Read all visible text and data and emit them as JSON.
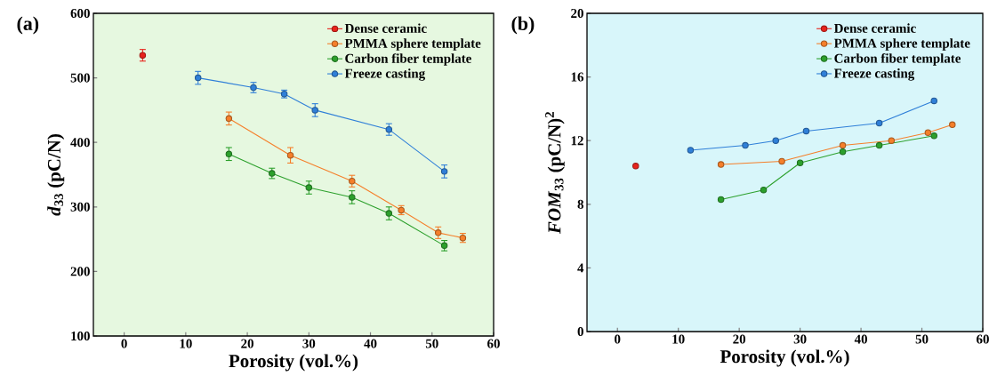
{
  "chart_data": [
    {
      "type": "line",
      "annotations": [
        "(a)"
      ],
      "xlabel": "Porosity (vol.%)",
      "ylabel": "*d*$_{33}$ (pC/N)",
      "xlim": [
        -5,
        60
      ],
      "ylim": [
        100,
        600
      ],
      "xticks": [
        0,
        10,
        20,
        30,
        40,
        50,
        60
      ],
      "yticks": [
        100,
        200,
        300,
        400,
        500,
        600
      ],
      "legend": "top right",
      "marker": "circle",
      "line_style": "solid",
      "grid": false,
      "series": [
        {
          "name": "Dense ceramic",
          "color": "#e8231c",
          "x": [
            3
          ],
          "values": [
            535
          ],
          "errors": [
            9
          ]
        },
        {
          "name": "PMMA sphere template",
          "color": "#f57f2a",
          "x": [
            17,
            27,
            37,
            45,
            51,
            55
          ],
          "values": [
            437,
            380,
            340,
            295,
            260,
            252
          ],
          "errors": [
            10,
            12,
            9,
            7,
            9,
            7
          ]
        },
        {
          "name": "Carbon fiber template",
          "color": "#2ca02c",
          "x": [
            17,
            24,
            30,
            37,
            43,
            52
          ],
          "values": [
            382,
            352,
            330,
            315,
            290,
            240
          ],
          "errors": [
            10,
            8,
            10,
            10,
            10,
            8
          ]
        },
        {
          "name": "Freeze casting",
          "color": "#2f7fd8",
          "x": [
            12,
            21,
            26,
            31,
            43,
            52
          ],
          "values": [
            500,
            485,
            475,
            450,
            420,
            355
          ],
          "errors": [
            10,
            8,
            6,
            10,
            9,
            10
          ]
        }
      ]
    },
    {
      "type": "line",
      "annotations": [
        "(b)"
      ],
      "xlabel": "Porosity (vol.%)",
      "ylabel": "*FOM*$_{33}$ (pC/N)$^{2}$",
      "xlim": [
        -5,
        60
      ],
      "ylim": [
        0,
        20
      ],
      "xticks": [
        0,
        10,
        20,
        30,
        40,
        50,
        60
      ],
      "yticks": [
        0,
        4,
        8,
        12,
        16,
        20
      ],
      "legend": "top right",
      "marker": "circle",
      "line_style": "solid",
      "grid": false,
      "series": [
        {
          "name": "Dense ceramic",
          "color": "#e8231c",
          "x": [
            3
          ],
          "values": [
            10.4
          ]
        },
        {
          "name": "PMMA sphere template",
          "color": "#f57f2a",
          "x": [
            17,
            27,
            37,
            45,
            51,
            55
          ],
          "values": [
            10.5,
            10.7,
            11.7,
            12.0,
            12.5,
            13.0
          ]
        },
        {
          "name": "Carbon fiber template",
          "color": "#2ca02c",
          "x": [
            17,
            24,
            30,
            37,
            43,
            52
          ],
          "values": [
            8.3,
            8.9,
            10.6,
            11.3,
            11.7,
            12.3
          ]
        },
        {
          "name": "Freeze casting",
          "color": "#2f7fd8",
          "x": [
            12,
            21,
            26,
            31,
            43,
            52
          ],
          "values": [
            11.4,
            11.7,
            12.0,
            12.6,
            13.1,
            14.5
          ]
        }
      ]
    }
  ]
}
